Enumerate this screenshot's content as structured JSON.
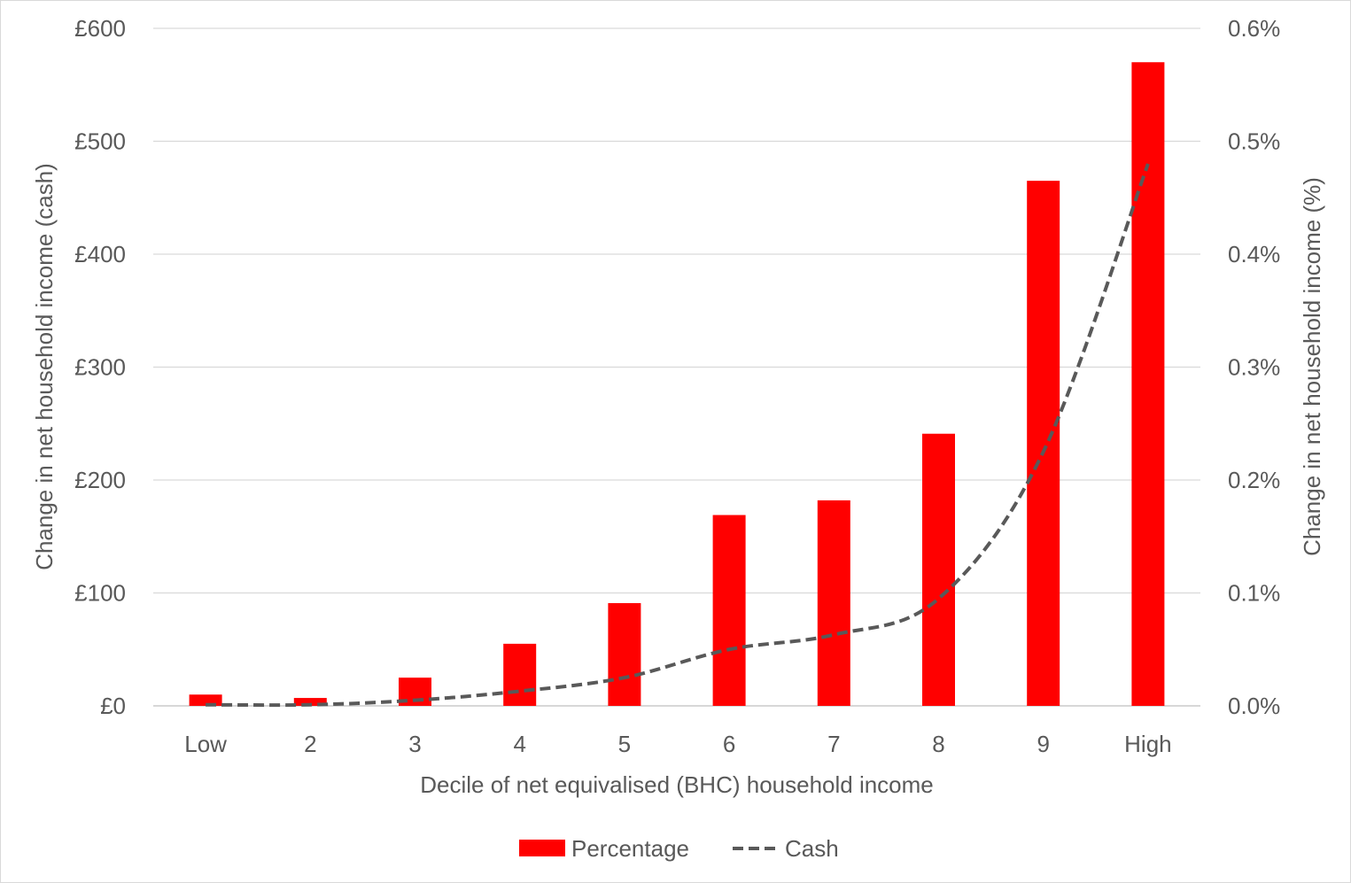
{
  "chart_data": {
    "type": "bar",
    "title": "",
    "categories": [
      "Low",
      "2",
      "3",
      "4",
      "5",
      "6",
      "7",
      "8",
      "9",
      "High"
    ],
    "xlabel": "Decile of net equivalised (BHC) household income",
    "ylabel_left": "Change in net household income (cash)",
    "ylabel_right": "Change in net household income (%)",
    "ylim_left": [
      0,
      600
    ],
    "ylim_right": [
      0,
      0.6
    ],
    "yticks_left": [
      "£0",
      "£100",
      "£200",
      "£300",
      "£400",
      "£500",
      "£600"
    ],
    "yticks_right": [
      "0.0%",
      "0.1%",
      "0.2%",
      "0.3%",
      "0.4%",
      "0.5%",
      "0.6%"
    ],
    "grid": true,
    "legend_position": "bottom",
    "series": [
      {
        "name": "Percentage",
        "type": "bar",
        "axis": "right",
        "unit": "%",
        "color": "#ff0000",
        "values": [
          0.01,
          0.007,
          0.025,
          0.055,
          0.091,
          0.169,
          0.182,
          0.241,
          0.465,
          0.57
        ]
      },
      {
        "name": "Cash",
        "type": "line",
        "style": "dashed",
        "axis": "left",
        "unit": "£",
        "color": "#595959",
        "values": [
          1,
          1,
          5,
          13,
          25,
          50,
          63,
          95,
          225,
          480
        ]
      }
    ]
  }
}
